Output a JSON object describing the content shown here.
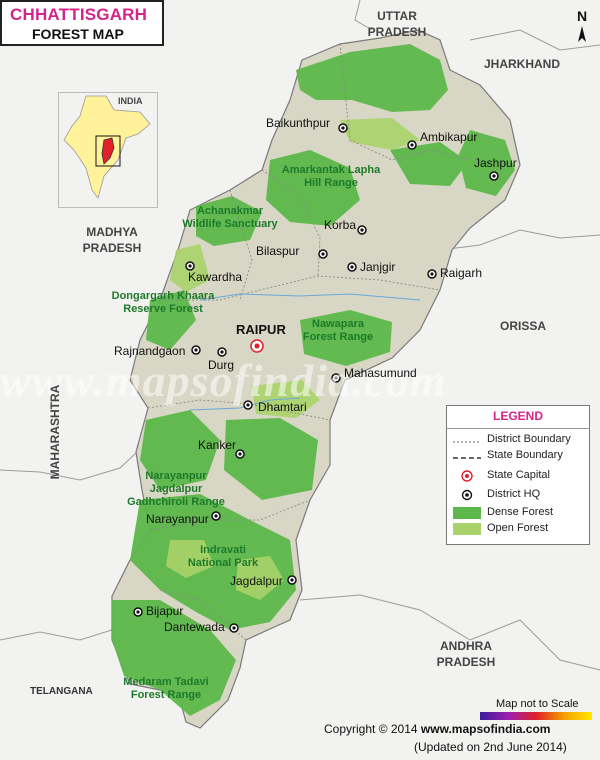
{
  "title": {
    "line1": "CHHATTISGARH",
    "line2": "FOREST MAP"
  },
  "north": "N",
  "inset": {
    "label": "INDIA"
  },
  "neighbours": {
    "uttar_pradesh": "UTTAR PRADESH",
    "jharkhand": "JHARKHAND",
    "madhya_pradesh": "MADHYA PRADESH",
    "orissa": "ORISSA",
    "maharashtra": "MAHARASHTRA",
    "andhra_pradesh": "ANDHRA PRADESH",
    "telangana": "TELANGANA"
  },
  "capital": "RAIPUR",
  "cities": {
    "baikunthpur": "Baikunthpur",
    "ambikapur": "Ambikapur",
    "jashpur": "Jashpur",
    "korba": "Korba",
    "bilaspur": "Bilaspur",
    "janjgir": "Janjgir",
    "raigarh": "Raigarh",
    "kawardha": "Kawardha",
    "rajnandgaon": "Rajnandgaon",
    "durg": "Durg",
    "mahasumund": "Mahasumund",
    "dhamtari": "Dhamtari",
    "kanker": "Kanker",
    "narayanpur": "Narayanpur",
    "jagdalpur": "Jagdalpur",
    "bijapur": "Bijapur",
    "dantewada": "Dantewada"
  },
  "forests": {
    "amarkantak": "Amarkantak Lapha Hill Range",
    "achanakmar": "Achanakmar Wildlife Sanctuary",
    "dongargarh": "Dongargarh Khaara Reserve Forest",
    "nawapara": "Nawapara Forest Range",
    "narayanpur_range": "Narayanpur Jagdalpur Gadhchiroli Range",
    "indravati": "Indravati National Park",
    "medaram": "Medaram Tadavi Forest Range"
  },
  "legend": {
    "title": "LEGEND",
    "district_boundary": "District Boundary",
    "state_boundary": "State Boundary",
    "state_capital": "State Capital",
    "district_hq": "District HQ",
    "dense_forest": "Dense Forest",
    "open_forest": "Open Forest"
  },
  "colors": {
    "state_fill": "#d8d6c4",
    "dense_forest": "#5cb84a",
    "open_forest": "#a9d36a",
    "title_magenta": "#d4248c",
    "forest_label": "#1d7a2a",
    "capital_red": "#e0202a"
  },
  "footer": {
    "scale_note": "Map not to Scale",
    "copyright_prefix": "Copyright © 2014 ",
    "copyright_site": "www.mapsofindia.com",
    "updated": "(Updated on 2nd June 2014)"
  },
  "watermark": "www.mapsofindia.com"
}
